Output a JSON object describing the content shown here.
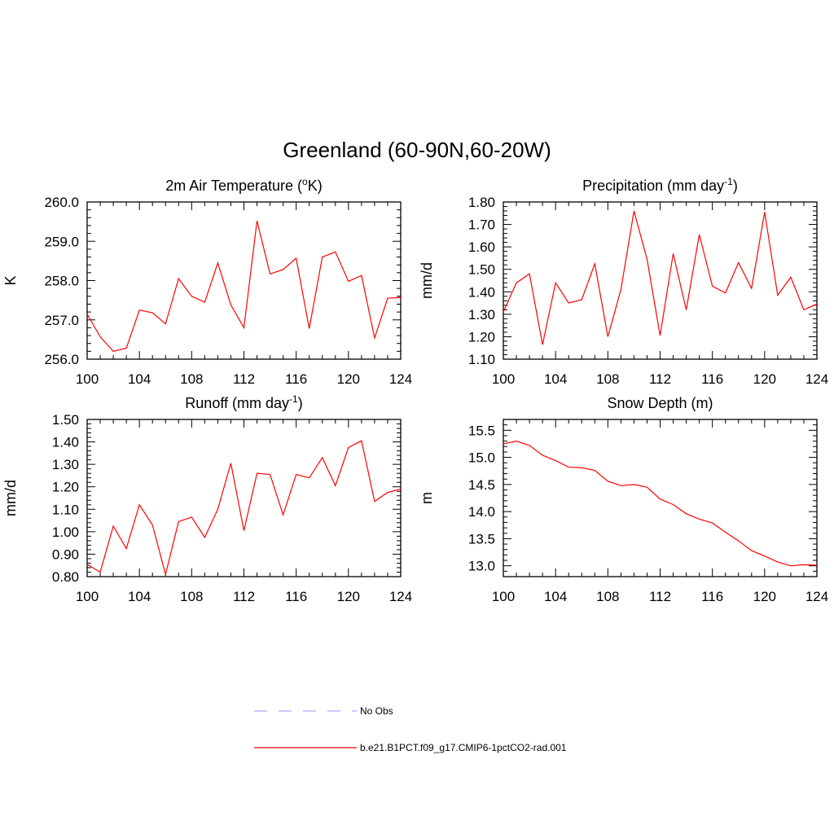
{
  "figure": {
    "title": "Greenland (60-90N,60-20W)",
    "line_color": "#ff0000",
    "obs_color": "#aaaaff"
  },
  "legend": {
    "obs_label": "No Obs",
    "model_label": "b.e21.B1PCT.f09_g17.CMIP6-1pctCO2-rad.001"
  },
  "chart_data": [
    {
      "type": "line",
      "title": "2m Air Temperature (",
      "title_sup": "o",
      "title_tail": "K)",
      "ylabel": "K",
      "xlim": [
        100,
        124
      ],
      "ylim": [
        256.0,
        260.0
      ],
      "xticks": [
        100,
        104,
        108,
        112,
        116,
        120,
        124
      ],
      "yticks": [
        "256.0",
        "257.0",
        "258.0",
        "259.0",
        "260.0"
      ],
      "series": [
        {
          "x": [
            100,
            101,
            102,
            103,
            104,
            105,
            106,
            107,
            108,
            109,
            110,
            111,
            112,
            113,
            114,
            115,
            116,
            117,
            118,
            119,
            120,
            121,
            122,
            123,
            124
          ],
          "values": [
            257.15,
            256.57,
            256.2,
            256.28,
            257.25,
            257.18,
            256.9,
            258.05,
            257.6,
            257.45,
            258.45,
            257.38,
            256.8,
            259.52,
            258.17,
            258.28,
            258.57,
            256.78,
            258.6,
            258.73,
            257.98,
            258.13,
            256.54,
            257.55,
            257.57
          ]
        }
      ]
    },
    {
      "type": "line",
      "title": "Precipitation (mm day",
      "title_sup": "-1",
      "title_tail": ")",
      "ylabel": "mm/d",
      "xlim": [
        100,
        124
      ],
      "ylim": [
        1.1,
        1.8
      ],
      "xticks": [
        100,
        104,
        108,
        112,
        116,
        120,
        124
      ],
      "yticks": [
        "1.10",
        "1.20",
        "1.30",
        "1.40",
        "1.50",
        "1.60",
        "1.70",
        "1.80"
      ],
      "series": [
        {
          "x": [
            100,
            101,
            102,
            103,
            104,
            105,
            106,
            107,
            108,
            109,
            110,
            111,
            112,
            113,
            114,
            115,
            116,
            117,
            118,
            119,
            120,
            121,
            122,
            123,
            124
          ],
          "values": [
            1.31,
            1.44,
            1.48,
            1.165,
            1.44,
            1.35,
            1.365,
            1.525,
            1.2,
            1.41,
            1.76,
            1.545,
            1.205,
            1.57,
            1.32,
            1.655,
            1.425,
            1.395,
            1.53,
            1.415,
            1.755,
            1.385,
            1.465,
            1.32,
            1.345
          ]
        }
      ]
    },
    {
      "type": "line",
      "title": "Runoff (mm day",
      "title_sup": "-1",
      "title_tail": ")",
      "ylabel": "mm/d",
      "xlim": [
        100,
        124
      ],
      "ylim": [
        0.8,
        1.5
      ],
      "xticks": [
        100,
        104,
        108,
        112,
        116,
        120,
        124
      ],
      "yticks": [
        "0.80",
        "0.90",
        "1.00",
        "1.10",
        "1.20",
        "1.30",
        "1.40",
        "1.50"
      ],
      "series": [
        {
          "x": [
            100,
            101,
            102,
            103,
            104,
            105,
            106,
            107,
            108,
            109,
            110,
            111,
            112,
            113,
            114,
            115,
            116,
            117,
            118,
            119,
            120,
            121,
            122,
            123,
            124
          ],
          "values": [
            0.855,
            0.82,
            1.025,
            0.925,
            1.12,
            1.03,
            0.81,
            1.045,
            1.065,
            0.975,
            1.1,
            1.305,
            1.005,
            1.26,
            1.255,
            1.075,
            1.255,
            1.24,
            1.33,
            1.205,
            1.375,
            1.405,
            1.135,
            1.175,
            1.19
          ]
        }
      ]
    },
    {
      "type": "line",
      "title": "Snow Depth (m)",
      "title_sup": "",
      "title_tail": "",
      "ylabel": "m",
      "xlim": [
        100,
        124
      ],
      "ylim": [
        12.8,
        15.7
      ],
      "xticks": [
        100,
        104,
        108,
        112,
        116,
        120,
        124
      ],
      "yticks": [
        "13.0",
        "13.5",
        "14.0",
        "14.5",
        "15.0",
        "15.5"
      ],
      "series": [
        {
          "x": [
            100,
            101,
            102,
            103,
            104,
            105,
            106,
            107,
            108,
            109,
            110,
            111,
            112,
            113,
            114,
            115,
            116,
            117,
            118,
            119,
            120,
            121,
            122,
            123,
            124
          ],
          "values": [
            15.25,
            15.3,
            15.22,
            15.04,
            14.94,
            14.82,
            14.81,
            14.76,
            14.56,
            14.48,
            14.5,
            14.45,
            14.23,
            14.13,
            13.96,
            13.86,
            13.79,
            13.62,
            13.46,
            13.28,
            13.18,
            13.07,
            13.0,
            13.02,
            13.01
          ]
        }
      ]
    }
  ]
}
